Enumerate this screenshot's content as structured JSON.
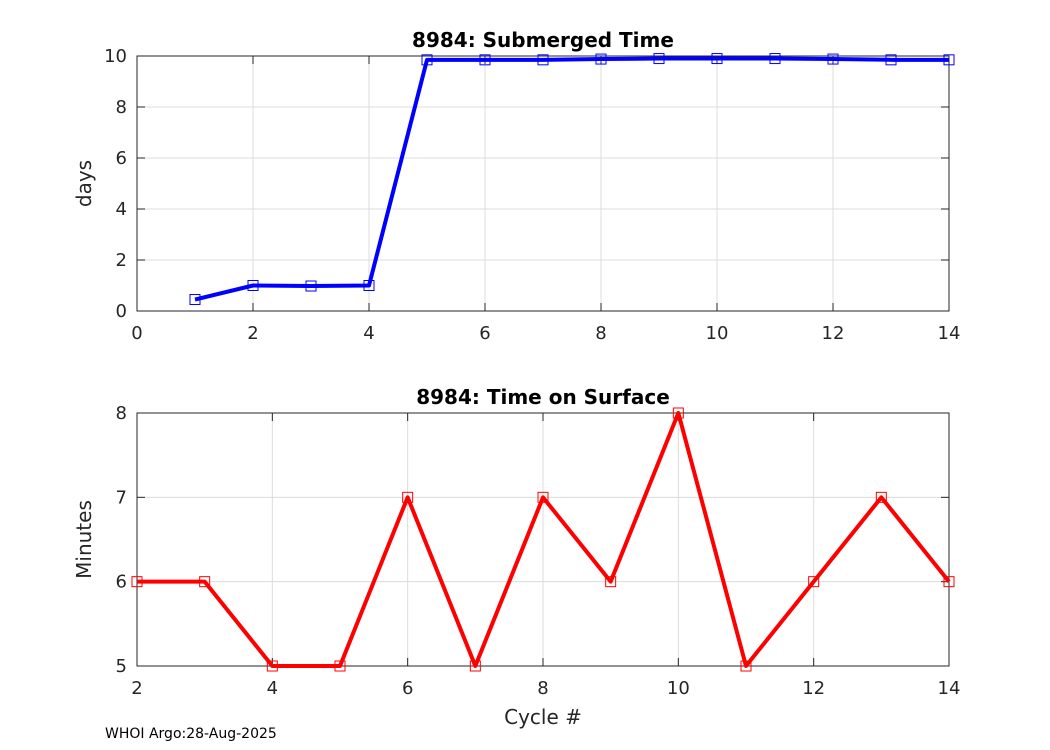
{
  "chart_data": [
    {
      "type": "line",
      "title": "8984: Submerged Time",
      "xlabel": "",
      "ylabel": "days",
      "xlim": [
        0,
        14
      ],
      "ylim": [
        0,
        10
      ],
      "xticks": [
        0,
        2,
        4,
        6,
        8,
        10,
        12,
        14
      ],
      "yticks": [
        0,
        2,
        4,
        6,
        8,
        10
      ],
      "grid": true,
      "series": [
        {
          "name": "Submerged Time",
          "color": "#0000ff",
          "marker": "square",
          "x": [
            1,
            2,
            3,
            4,
            5,
            6,
            7,
            8,
            9,
            10,
            11,
            12,
            13,
            14
          ],
          "values": [
            0.45,
            1.0,
            0.98,
            1.0,
            9.85,
            9.85,
            9.85,
            9.88,
            9.9,
            9.9,
            9.9,
            9.88,
            9.85,
            9.85
          ]
        }
      ]
    },
    {
      "type": "line",
      "title": "8984: Time on Surface",
      "xlabel": "Cycle #",
      "ylabel": "Minutes",
      "xlim": [
        2,
        14
      ],
      "ylim": [
        5,
        8
      ],
      "xticks": [
        2,
        4,
        6,
        8,
        10,
        12,
        14
      ],
      "yticks": [
        5,
        6,
        7,
        8
      ],
      "grid": true,
      "series": [
        {
          "name": "Time on Surface",
          "color": "#ff0000",
          "marker": "square",
          "x": [
            2,
            3,
            4,
            5,
            6,
            7,
            8,
            9,
            10,
            11,
            12,
            13,
            14
          ],
          "values": [
            6,
            6,
            5,
            5,
            7,
            5,
            7,
            6,
            8,
            5,
            6,
            7,
            6
          ]
        }
      ]
    }
  ],
  "footer": "WHOI Argo:28-Aug-2025"
}
